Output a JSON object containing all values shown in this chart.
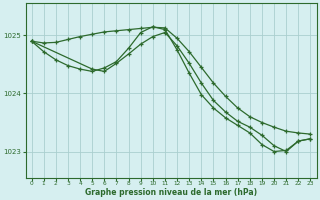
{
  "xlabel": "Graphe pression niveau de la mer (hPa)",
  "background_color": "#d6eff0",
  "grid_color": "#aacfcf",
  "line_color": "#2d6a2d",
  "ylim": [
    1022.55,
    1025.55
  ],
  "xlim": [
    -0.5,
    23.5
  ],
  "yticks": [
    1023,
    1024,
    1025
  ],
  "xticks": [
    0,
    1,
    2,
    3,
    4,
    5,
    6,
    7,
    8,
    9,
    10,
    11,
    12,
    13,
    14,
    15,
    16,
    17,
    18,
    19,
    20,
    21,
    22,
    23
  ],
  "series1_x": [
    0,
    1,
    2,
    3,
    4,
    5,
    6,
    7,
    8,
    9,
    10,
    11,
    12,
    13,
    14,
    15,
    16,
    17,
    18,
    19,
    20,
    21,
    22,
    23
  ],
  "series1_y": [
    1024.9,
    1024.87,
    1024.88,
    1024.93,
    1024.98,
    1025.02,
    1025.06,
    1025.08,
    1025.1,
    1025.12,
    1025.14,
    1025.13,
    1024.95,
    1024.72,
    1024.45,
    1024.18,
    1023.95,
    1023.75,
    1023.6,
    1023.5,
    1023.42,
    1023.35,
    1023.32,
    1023.3
  ],
  "series2_x": [
    0,
    1,
    2,
    3,
    4,
    5,
    6,
    7,
    8,
    9,
    10,
    11,
    12,
    13,
    14,
    15,
    16,
    17,
    18,
    19,
    20,
    21,
    22,
    23
  ],
  "series2_y": [
    1024.9,
    1024.72,
    1024.58,
    1024.48,
    1024.42,
    1024.38,
    1024.44,
    1024.55,
    1024.78,
    1025.05,
    1025.15,
    1025.1,
    1024.75,
    1024.35,
    1023.98,
    1023.75,
    1023.58,
    1023.45,
    1023.32,
    1023.12,
    1023.0,
    1023.02,
    1023.18,
    1023.22
  ],
  "series3_x": [
    0,
    5,
    6,
    7,
    8,
    9,
    10,
    11,
    12,
    13,
    14,
    15,
    16,
    17,
    18,
    19,
    20,
    21,
    22,
    23
  ],
  "series3_y": [
    1024.9,
    1024.42,
    1024.38,
    1024.52,
    1024.68,
    1024.85,
    1024.98,
    1025.05,
    1024.82,
    1024.52,
    1024.18,
    1023.88,
    1023.68,
    1023.52,
    1023.42,
    1023.28,
    1023.1,
    1023.0,
    1023.18,
    1023.22
  ]
}
